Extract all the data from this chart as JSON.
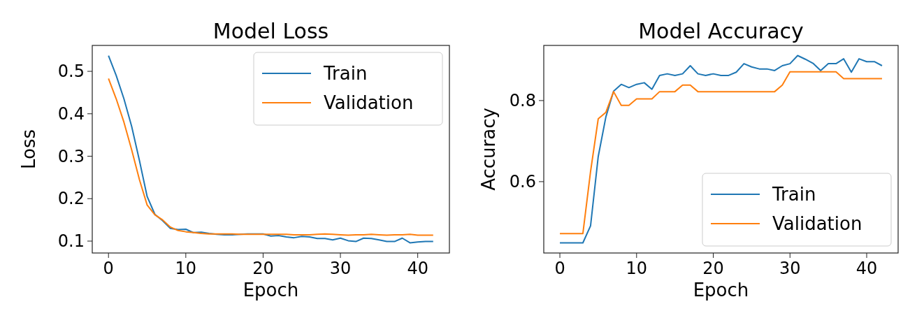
{
  "chart_data": [
    {
      "type": "line",
      "title": "Model Loss",
      "xlabel": "Epoch",
      "ylabel": "Loss",
      "x": [
        0,
        1,
        2,
        3,
        4,
        5,
        6,
        7,
        8,
        9,
        10,
        11,
        12,
        13,
        14,
        15,
        16,
        17,
        18,
        19,
        20,
        21,
        22,
        23,
        24,
        25,
        26,
        27,
        28,
        29,
        30,
        31,
        32,
        33,
        34,
        35,
        36,
        37,
        38,
        39,
        40,
        41,
        42
      ],
      "series": [
        {
          "name": "Train",
          "color": "#1f77b4",
          "values": [
            0.537,
            0.49,
            0.435,
            0.37,
            0.29,
            0.205,
            0.163,
            0.148,
            0.13,
            0.127,
            0.128,
            0.12,
            0.121,
            0.118,
            0.116,
            0.115,
            0.115,
            0.116,
            0.117,
            0.117,
            0.117,
            0.112,
            0.113,
            0.11,
            0.108,
            0.111,
            0.11,
            0.106,
            0.106,
            0.103,
            0.107,
            0.101,
            0.099,
            0.107,
            0.106,
            0.103,
            0.099,
            0.099,
            0.107,
            0.096,
            0.098,
            0.099,
            0.099
          ]
        },
        {
          "name": "Validation",
          "color": "#ff7f0e",
          "values": [
            0.483,
            0.435,
            0.38,
            0.315,
            0.245,
            0.185,
            0.162,
            0.15,
            0.133,
            0.125,
            0.122,
            0.12,
            0.118,
            0.117,
            0.117,
            0.117,
            0.117,
            0.116,
            0.116,
            0.116,
            0.116,
            0.116,
            0.116,
            0.116,
            0.115,
            0.115,
            0.115,
            0.116,
            0.117,
            0.116,
            0.115,
            0.114,
            0.115,
            0.115,
            0.116,
            0.115,
            0.114,
            0.115,
            0.115,
            0.116,
            0.114,
            0.114,
            0.114
          ]
        }
      ],
      "xlim": [
        -2.1,
        44.1
      ],
      "xticks": [
        0,
        10,
        20,
        30,
        40
      ],
      "ylim": [
        0.072,
        0.561
      ],
      "yticks": [
        0.1,
        0.2,
        0.3,
        0.4,
        0.5
      ],
      "legend": "top right",
      "grid": false
    },
    {
      "type": "line",
      "title": "Model Accuracy",
      "xlabel": "Epoch",
      "ylabel": "Accuracy",
      "x": [
        0,
        1,
        2,
        3,
        4,
        5,
        6,
        7,
        8,
        9,
        10,
        11,
        12,
        13,
        14,
        15,
        16,
        17,
        18,
        19,
        20,
        21,
        22,
        23,
        24,
        25,
        26,
        27,
        28,
        29,
        30,
        31,
        32,
        33,
        34,
        35,
        36,
        37,
        38,
        39,
        40,
        41,
        42
      ],
      "series": [
        {
          "name": "Train",
          "color": "#1f77b4",
          "values": [
            0.449,
            0.449,
            0.449,
            0.449,
            0.491,
            0.662,
            0.76,
            0.823,
            0.84,
            0.832,
            0.84,
            0.844,
            0.828,
            0.862,
            0.866,
            0.862,
            0.866,
            0.886,
            0.866,
            0.862,
            0.866,
            0.862,
            0.862,
            0.87,
            0.891,
            0.883,
            0.878,
            0.878,
            0.874,
            0.886,
            0.891,
            0.911,
            0.902,
            0.892,
            0.874,
            0.891,
            0.891,
            0.903,
            0.87,
            0.903,
            0.896,
            0.896,
            0.886
          ]
        },
        {
          "name": "Validation",
          "color": "#ff7f0e",
          "values": [
            0.472,
            0.472,
            0.472,
            0.472,
            0.625,
            0.755,
            0.771,
            0.822,
            0.788,
            0.788,
            0.804,
            0.804,
            0.804,
            0.822,
            0.822,
            0.822,
            0.838,
            0.838,
            0.822,
            0.822,
            0.822,
            0.822,
            0.822,
            0.822,
            0.822,
            0.822,
            0.822,
            0.822,
            0.822,
            0.838,
            0.871,
            0.871,
            0.871,
            0.871,
            0.871,
            0.871,
            0.871,
            0.854,
            0.854,
            0.854,
            0.854,
            0.854,
            0.854
          ]
        }
      ],
      "xlim": [
        -2.1,
        44.1
      ],
      "xticks": [
        0,
        10,
        20,
        30,
        40
      ],
      "ylim": [
        0.424,
        0.936
      ],
      "yticks": [
        0.6,
        0.8
      ],
      "legend": "bottom right",
      "grid": false
    }
  ]
}
